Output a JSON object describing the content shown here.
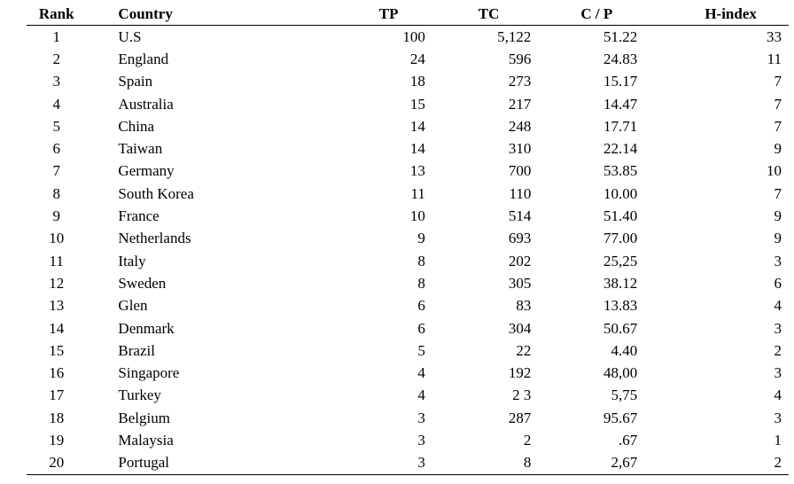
{
  "table": {
    "headers": {
      "rank": "Rank",
      "country": "Country",
      "tp": "TP",
      "tc": "TC",
      "cp": "C / P",
      "h_index": "H-index"
    },
    "rows": [
      {
        "rank": "1",
        "country": "U.S",
        "tp": "100",
        "tc": "5,122",
        "cp": "51.22",
        "h": "33"
      },
      {
        "rank": "2",
        "country": "England",
        "tp": "24",
        "tc": "596",
        "cp": "24.83",
        "h": "11"
      },
      {
        "rank": "3",
        "country": "Spain",
        "tp": "18",
        "tc": "273",
        "cp": "15.17",
        "h": "7"
      },
      {
        "rank": "4",
        "country": "Australia",
        "tp": "15",
        "tc": "217",
        "cp": "14.47",
        "h": "7"
      },
      {
        "rank": "5",
        "country": "China",
        "tp": "14",
        "tc": "248",
        "cp": "17.71",
        "h": "7"
      },
      {
        "rank": "6",
        "country": "Taiwan",
        "tp": "14",
        "tc": "310",
        "cp": "22.14",
        "h": "9"
      },
      {
        "rank": "7",
        "country": "Germany",
        "tp": "13",
        "tc": "700",
        "cp": "53.85",
        "h": "10"
      },
      {
        "rank": "8",
        "country": "South Korea",
        "tp": "11",
        "tc": "110",
        "cp": "10.00",
        "h": "7"
      },
      {
        "rank": "9",
        "country": "France",
        "tp": "10",
        "tc": "514",
        "cp": "51.40",
        "h": "9"
      },
      {
        "rank": "10",
        "country": "Netherlands",
        "tp": "9",
        "tc": "693",
        "cp": "77.00",
        "h": "9"
      },
      {
        "rank": "11",
        "country": "Italy",
        "tp": "8",
        "tc": "202",
        "cp": "25,25",
        "h": "3"
      },
      {
        "rank": "12",
        "country": "Sweden",
        "tp": "8",
        "tc": "305",
        "cp": "38.12",
        "h": "6"
      },
      {
        "rank": "13",
        "country": "Glen",
        "tp": "6",
        "tc": "83",
        "cp": "13.83",
        "h": "4"
      },
      {
        "rank": "14",
        "country": "Denmark",
        "tp": "6",
        "tc": "304",
        "cp": "50.67",
        "h": "3"
      },
      {
        "rank": "15",
        "country": "Brazil",
        "tp": "5",
        "tc": "22",
        "cp": "4.40",
        "h": "2"
      },
      {
        "rank": "16",
        "country": "Singapore",
        "tp": "4",
        "tc": "192",
        "cp": "48,00",
        "h": "3"
      },
      {
        "rank": "17",
        "country": "Turkey",
        "tp": "4",
        "tc": "2 3",
        "cp": "5,75",
        "h": "4"
      },
      {
        "rank": "18",
        "country": "Belgium",
        "tp": "3",
        "tc": "287",
        "cp": "95.67",
        "h": "3"
      },
      {
        "rank": "19",
        "country": "Malaysia",
        "tp": "3",
        "tc": "2",
        "cp": ".67",
        "h": "1"
      },
      {
        "rank": "20",
        "country": "Portugal",
        "tp": "3",
        "tc": "8",
        "cp": "2,67",
        "h": "2"
      }
    ]
  }
}
